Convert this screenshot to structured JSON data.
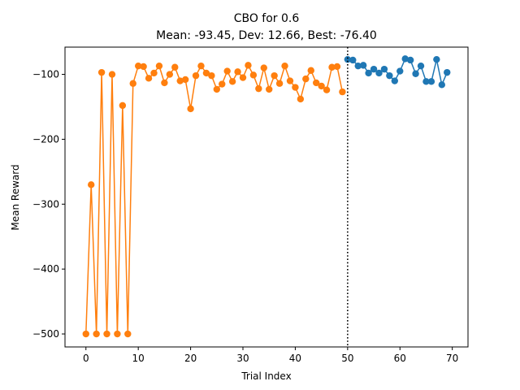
{
  "chart_data": {
    "type": "line",
    "title": "CBO for 0.6",
    "subtitle": "Mean: -93.45, Dev: 12.66, Best: -76.40",
    "xlabel": "Trial Index",
    "ylabel": "Mean Reward",
    "xlim": [
      -4,
      73
    ],
    "ylim": [
      -520,
      -58
    ],
    "xticks": [
      0,
      10,
      20,
      30,
      40,
      50,
      60,
      70
    ],
    "yticks": [
      -500,
      -400,
      -300,
      -200,
      -100
    ],
    "ytick_labels": [
      "−500",
      "−400",
      "−300",
      "−200",
      "−100"
    ],
    "grid": false,
    "vline": {
      "x": 50,
      "style": "dotted",
      "color": "#000000"
    },
    "series": [
      {
        "color": "#ff7f0e",
        "marker": "circle",
        "x": [
          0,
          1,
          2,
          3,
          4,
          5,
          6,
          7,
          8,
          9,
          10,
          11,
          12,
          13,
          14,
          15,
          16,
          17,
          18,
          19,
          20,
          21,
          22,
          23,
          24,
          25,
          26,
          27,
          28,
          29,
          30,
          31,
          32,
          33,
          34,
          35,
          36,
          37,
          38,
          39,
          40,
          41,
          42,
          43,
          44,
          45,
          46,
          47,
          48,
          49
        ],
        "y": [
          -500,
          -270,
          -500,
          -97,
          -500,
          -100,
          -500,
          -148,
          -500,
          -114,
          -87,
          -88,
          -106,
          -98,
          -87,
          -113,
          -100,
          -89,
          -110,
          -108,
          -153,
          -102,
          -87,
          -98,
          -102,
          -123,
          -115,
          -95,
          -111,
          -96,
          -105,
          -86,
          -101,
          -122,
          -90,
          -123,
          -102,
          -114,
          -87,
          -110,
          -120,
          -138,
          -107,
          -94,
          -113,
          -118,
          -124,
          -89,
          -88,
          -127
        ]
      },
      {
        "color": "#1f77b4",
        "marker": "circle",
        "x": [
          50,
          51,
          52,
          53,
          54,
          55,
          56,
          57,
          58,
          59,
          60,
          61,
          62,
          63,
          64,
          65,
          66,
          67,
          68,
          69
        ],
        "y": [
          -77,
          -78,
          -87,
          -86,
          -98,
          -92,
          -98,
          -92,
          -102,
          -110,
          -95,
          -76,
          -78,
          -99,
          -87,
          -111,
          -111,
          -77,
          -116,
          -97
        ]
      }
    ]
  }
}
